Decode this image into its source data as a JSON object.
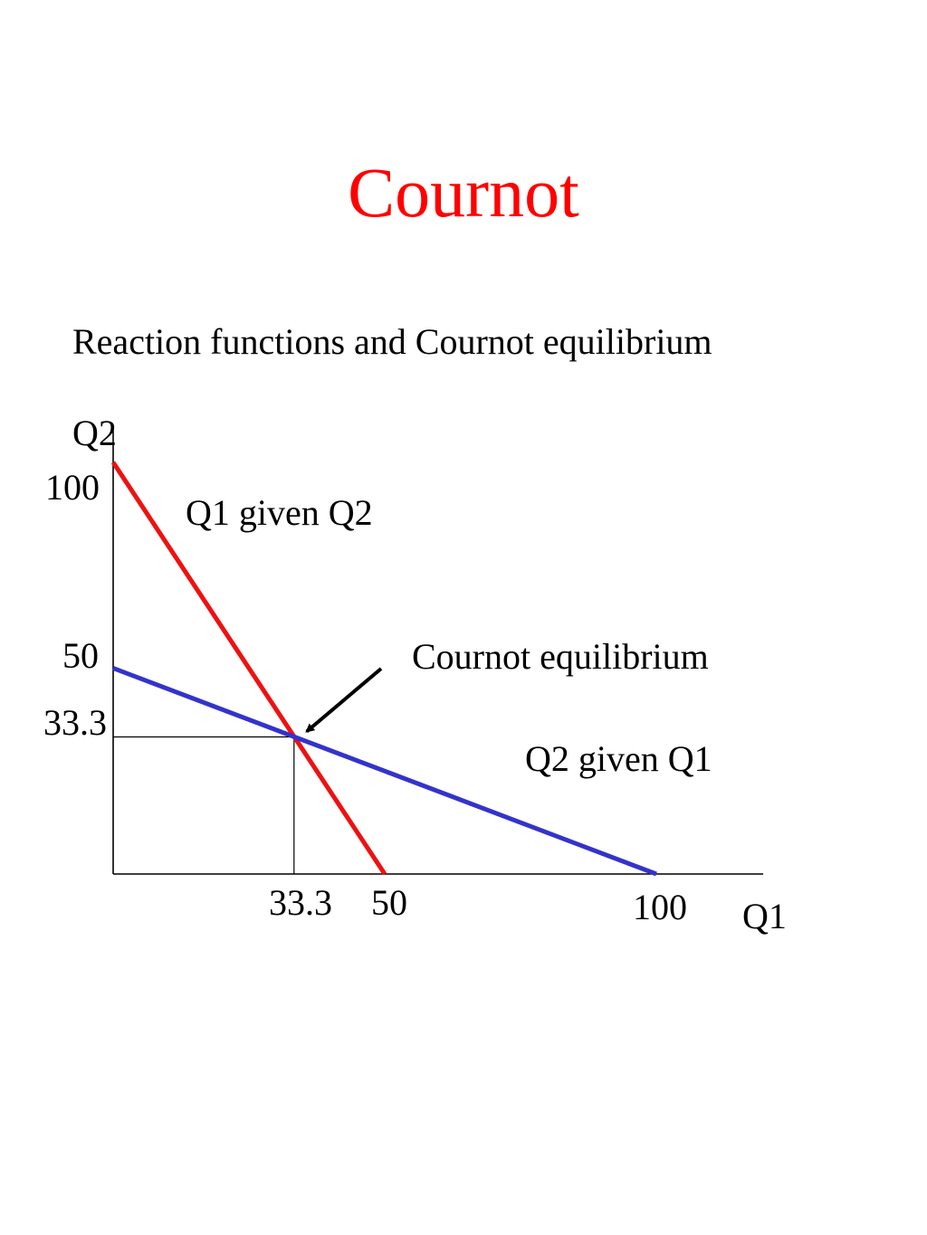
{
  "title": "Cournot",
  "subtitle": "Reaction functions and Cournot equilibrium",
  "colors": {
    "title": "#ff0000",
    "q1_reaction": "#ee1111",
    "q2_reaction": "#3333cc",
    "axes": "#000000"
  },
  "chart_data": {
    "type": "line",
    "xlabel": "Q1",
    "ylabel": "Q2",
    "xlim": [
      0,
      100
    ],
    "ylim": [
      0,
      100
    ],
    "grid": false,
    "x_ticks": [
      {
        "value": 33.3,
        "label": "33.3"
      },
      {
        "value": 50,
        "label": "50"
      },
      {
        "value": 100,
        "label": "100"
      }
    ],
    "y_ticks": [
      {
        "value": 100,
        "label": "100"
      },
      {
        "value": 50,
        "label": "50"
      },
      {
        "value": 33.3,
        "label": "33.3"
      }
    ],
    "series": [
      {
        "name": "Q1 given Q2",
        "color": "#ee1111",
        "points": [
          {
            "x": 0,
            "y": 100
          },
          {
            "x": 50,
            "y": 0
          }
        ]
      },
      {
        "name": "Q2 given Q1",
        "color": "#3333cc",
        "points": [
          {
            "x": 0,
            "y": 50
          },
          {
            "x": 100,
            "y": 0
          }
        ]
      }
    ],
    "equilibrium": {
      "x": 33.3,
      "y": 33.3
    },
    "annotations": [
      {
        "text": "Cournot equilibrium",
        "points_to": {
          "x": 33.3,
          "y": 33.3
        }
      }
    ]
  }
}
